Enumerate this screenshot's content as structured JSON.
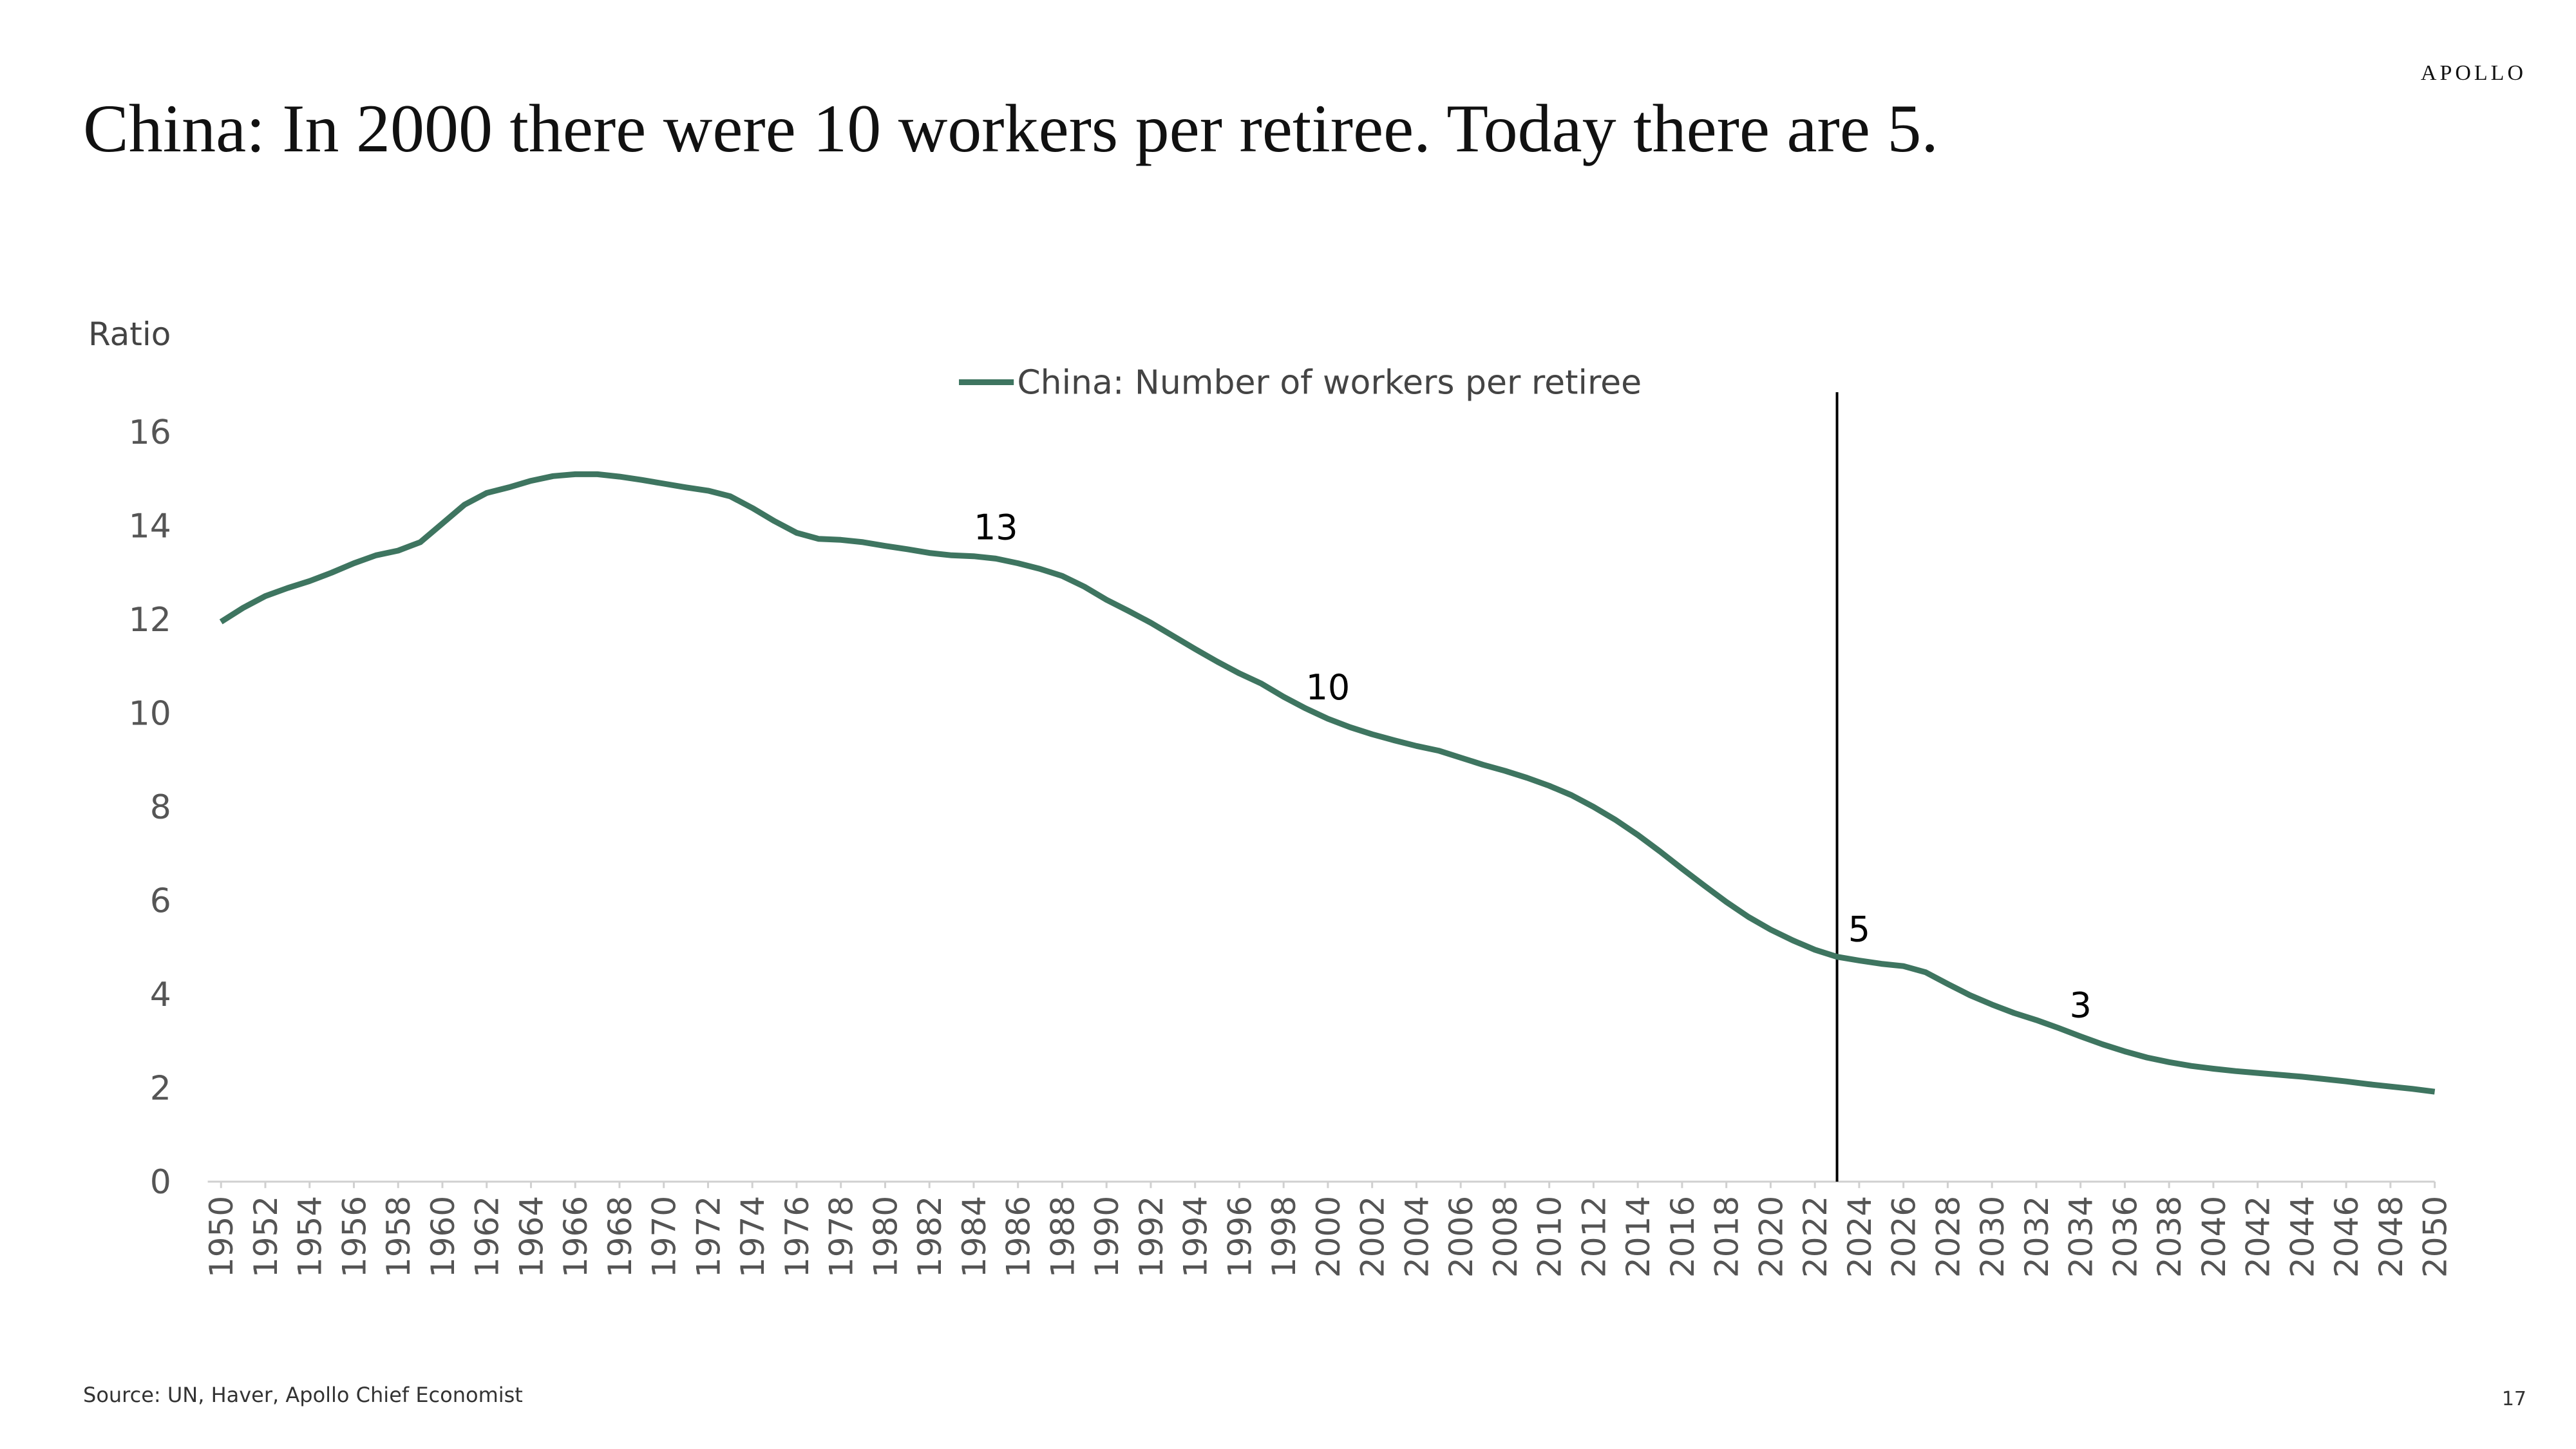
{
  "brand": "APOLLO",
  "page_number": "17",
  "source": "Source: UN, Haver, Apollo Chief Economist",
  "chart_data": {
    "type": "line",
    "title": "China: In 2000 there were 10 workers per retiree. Today there are 5.",
    "y_label": "Ratio",
    "x": [
      1950,
      1951,
      1952,
      1953,
      1954,
      1955,
      1956,
      1957,
      1958,
      1959,
      1960,
      1961,
      1962,
      1963,
      1964,
      1965,
      1966,
      1967,
      1968,
      1969,
      1970,
      1971,
      1972,
      1973,
      1974,
      1975,
      1976,
      1977,
      1978,
      1979,
      1980,
      1981,
      1982,
      1983,
      1984,
      1985,
      1986,
      1987,
      1988,
      1989,
      1990,
      1991,
      1992,
      1993,
      1994,
      1995,
      1996,
      1997,
      1998,
      1999,
      2000,
      2001,
      2002,
      2003,
      2004,
      2005,
      2006,
      2007,
      2008,
      2009,
      2010,
      2011,
      2012,
      2013,
      2014,
      2015,
      2016,
      2017,
      2018,
      2019,
      2020,
      2021,
      2022,
      2023,
      2024,
      2025,
      2026,
      2027,
      2028,
      2029,
      2030,
      2031,
      2032,
      2033,
      2034,
      2035,
      2036,
      2037,
      2038,
      2039,
      2040,
      2041,
      2042,
      2043,
      2044,
      2045,
      2046,
      2047,
      2048,
      2049,
      2050
    ],
    "series": [
      {
        "name": "China: Number of workers per retiree",
        "color": "#3e7560",
        "values": [
          11.95,
          12.25,
          12.5,
          12.67,
          12.82,
          13.0,
          13.2,
          13.37,
          13.47,
          13.65,
          14.05,
          14.45,
          14.7,
          14.82,
          14.96,
          15.06,
          15.1,
          15.1,
          15.05,
          14.98,
          14.9,
          14.82,
          14.75,
          14.63,
          14.38,
          14.1,
          13.85,
          13.72,
          13.7,
          13.65,
          13.57,
          13.5,
          13.42,
          13.37,
          13.35,
          13.3,
          13.2,
          13.08,
          12.93,
          12.7,
          12.42,
          12.18,
          11.93,
          11.65,
          11.37,
          11.1,
          10.85,
          10.63,
          10.35,
          10.1,
          9.88,
          9.7,
          9.55,
          9.42,
          9.3,
          9.2,
          9.05,
          8.9,
          8.77,
          8.62,
          8.45,
          8.25,
          8.0,
          7.72,
          7.4,
          7.05,
          6.68,
          6.32,
          5.97,
          5.65,
          5.38,
          5.15,
          4.95,
          4.8,
          4.72,
          4.65,
          4.6,
          4.47,
          4.22,
          3.98,
          3.78,
          3.6,
          3.45,
          3.28,
          3.1,
          2.93,
          2.78,
          2.65,
          2.55,
          2.47,
          2.41,
          2.36,
          2.32,
          2.28,
          2.24,
          2.19,
          2.14,
          2.08,
          2.03,
          1.98,
          1.92
        ]
      }
    ],
    "annotations": [
      {
        "label": "13",
        "x": 1985
      },
      {
        "label": "10",
        "x": 2000
      },
      {
        "label": "5",
        "x": 2024
      },
      {
        "label": "3",
        "x": 2034
      }
    ],
    "vline": 2023,
    "xlim": [
      1950,
      2050
    ],
    "xticks": [
      1950,
      1952,
      1954,
      1956,
      1958,
      1960,
      1962,
      1964,
      1966,
      1968,
      1970,
      1972,
      1974,
      1976,
      1978,
      1980,
      1982,
      1984,
      1986,
      1988,
      1990,
      1992,
      1994,
      1996,
      1998,
      2000,
      2002,
      2004,
      2006,
      2008,
      2010,
      2012,
      2014,
      2016,
      2018,
      2020,
      2022,
      2024,
      2026,
      2028,
      2030,
      2032,
      2034,
      2036,
      2038,
      2040,
      2042,
      2044,
      2046,
      2048,
      2050
    ],
    "ylim": [
      0,
      16
    ],
    "yticks": [
      0,
      2,
      4,
      6,
      8,
      10,
      12,
      14,
      16
    ],
    "legend": "top-center"
  }
}
